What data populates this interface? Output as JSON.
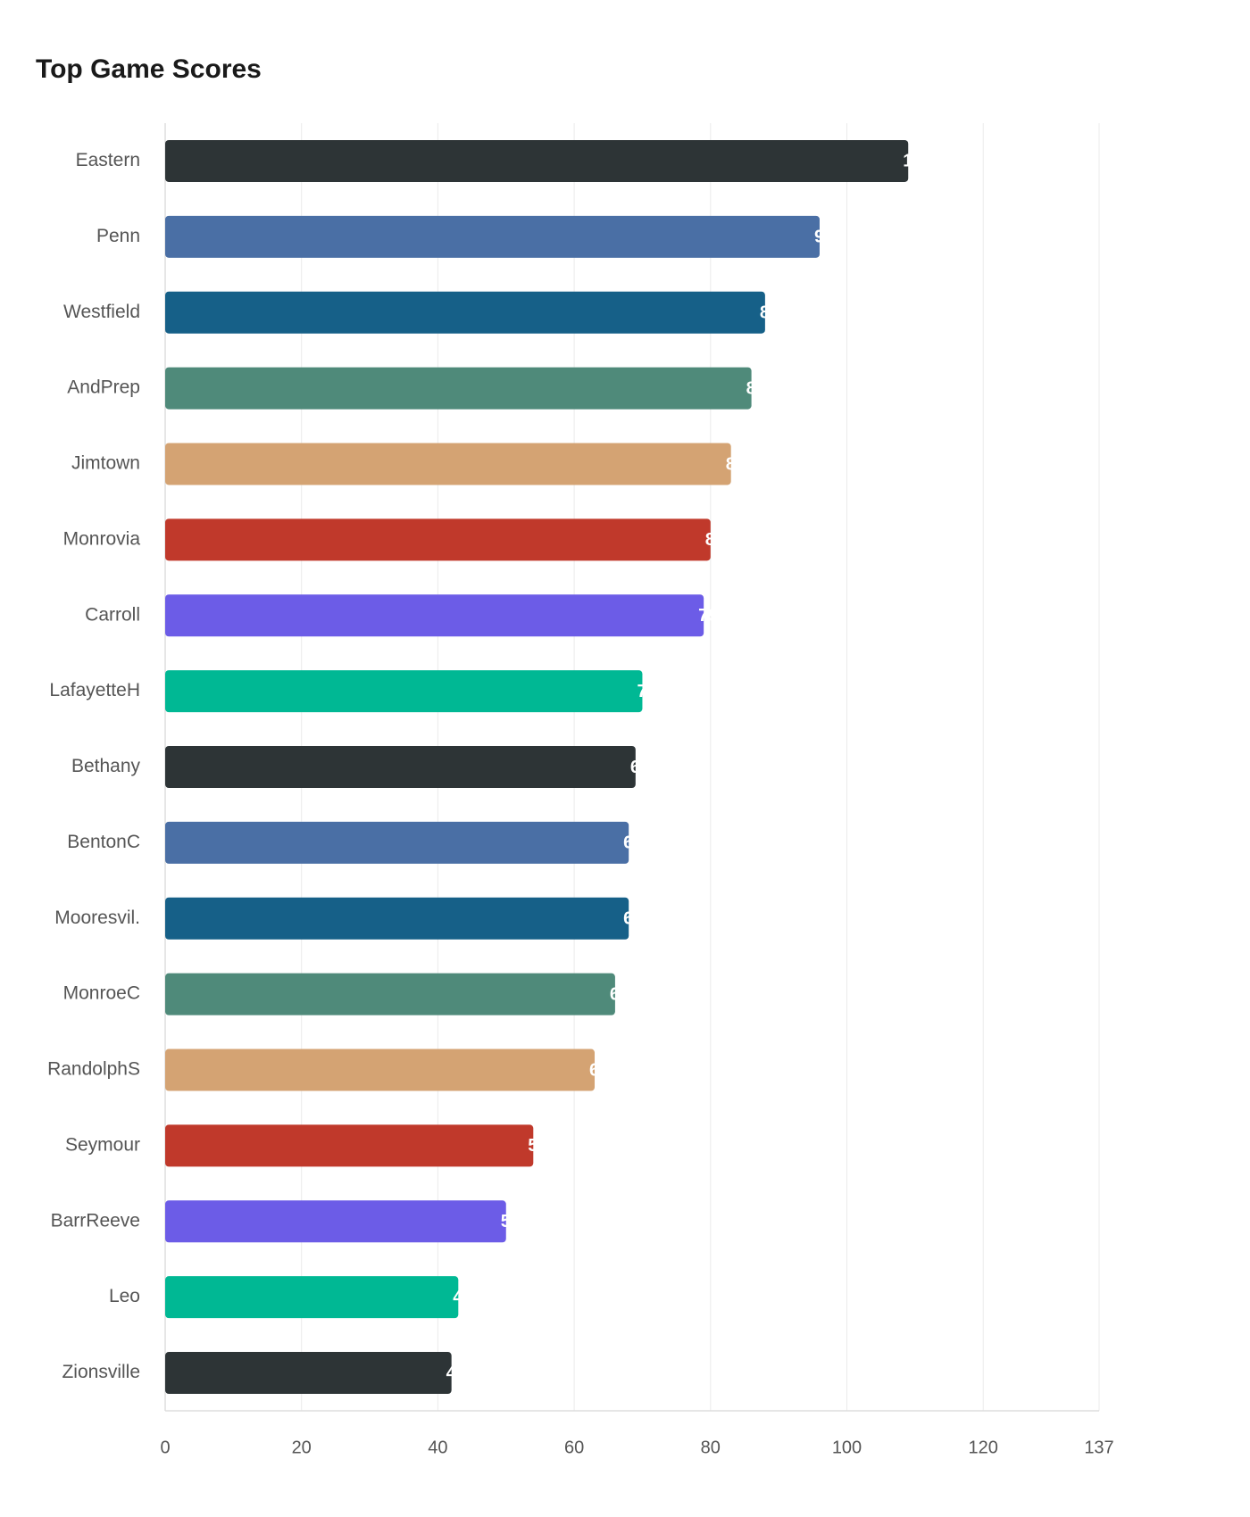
{
  "chart_data": {
    "type": "hbar",
    "title": "Top Game Scores",
    "categories": [
      "Eastern",
      "Penn",
      "Westfield",
      "AndPrep",
      "Jimtown",
      "Monrovia",
      "Carroll",
      "LafayetteH",
      "Bethany",
      "BentonC",
      "Mooresvil.",
      "MonroeC",
      "RandolphS",
      "Seymour",
      "BarrReeve",
      "Leo",
      "Zionsville"
    ],
    "values": [
      109,
      96,
      88,
      86,
      83,
      80,
      79,
      70,
      69,
      68,
      68,
      66,
      63,
      54,
      50,
      43,
      42
    ],
    "colors": [
      "#2d3436",
      "#4a6fa5",
      "#166088",
      "#4f8a7a",
      "#d4a373",
      "#c0392b",
      "#6c5ce7",
      "#00b894"
    ],
    "xlim": [
      0,
      137
    ],
    "xticks": [
      0,
      20,
      40,
      60,
      80,
      100,
      120,
      137
    ],
    "grid": true
  }
}
